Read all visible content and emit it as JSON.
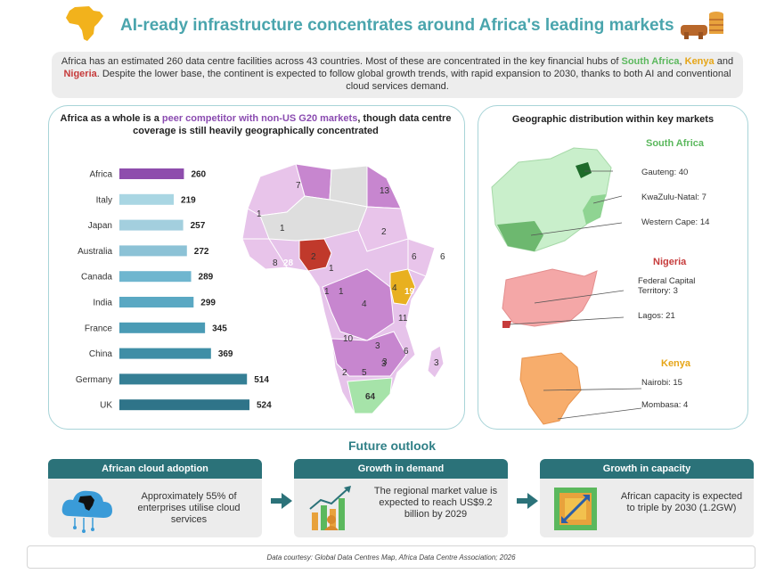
{
  "header": {
    "title": "AI-ready infrastructure concentrates around Africa's leading markets"
  },
  "intro": {
    "part1": "Africa has an estimated 260 data centre facilities across 43 countries. Most of these are concentrated in the key financial hubs of ",
    "south_africa": "South Africa",
    "comma": ", ",
    "kenya": "Kenya",
    "and": " and ",
    "nigeria": "Nigeria",
    "part2": ". Despite the lower base, the continent is expected to follow global growth trends, with rapid expansion to 2030, thanks to both AI and conventional cloud services demand."
  },
  "left_panel": {
    "heading_a": "Africa as a whole is a ",
    "heading_highlight": "peer competitor with non-US G20 markets",
    "heading_b": ", though data centre coverage is still heavily geographically concentrated"
  },
  "chart_data": {
    "type": "bar",
    "orientation": "horizontal",
    "categories": [
      "Africa",
      "Italy",
      "Japan",
      "Australia",
      "Canada",
      "India",
      "France",
      "China",
      "Germany",
      "UK"
    ],
    "values": [
      260,
      219,
      257,
      272,
      289,
      299,
      345,
      369,
      514,
      524
    ],
    "colors": [
      "#8e4dad",
      "#a9d6e3",
      "#a3cfde",
      "#8cc2d6",
      "#6fb6cf",
      "#5aa8c3",
      "#4a9bb5",
      "#3f8ea6",
      "#357f95",
      "#2f7489"
    ],
    "xlim": [
      0,
      524
    ],
    "grid": false
  },
  "africa_map": {
    "region_counts": [
      "7",
      "13",
      "1",
      "1",
      "2",
      "6",
      "8",
      "28",
      "2",
      "1",
      "6",
      "1",
      "1",
      "4",
      "19",
      "4",
      "11",
      "10",
      "3",
      "6",
      "3",
      "2",
      "5",
      "3",
      "3",
      "64"
    ],
    "colors": {
      "nigeria": "#c0392b",
      "kenya": "#e8b020",
      "south_africa": "#a6e3a9",
      "high": "#c786cf",
      "low": "#e8c4ea",
      "none": "#dedede"
    }
  },
  "right_panel": {
    "heading": "Geographic distribution within key markets",
    "south_africa": {
      "title": "South Africa",
      "labels": [
        "Gauteng: 40",
        "KwaZulu-Natal: 7",
        "Western Cape: 14"
      ]
    },
    "nigeria": {
      "title": "Nigeria",
      "label1_line1": "Federal Capital",
      "label1_line2": "Territory: 3",
      "label2": "Lagos: 21"
    },
    "kenya": {
      "title": "Kenya",
      "labels": [
        "Nairobi: 15",
        "Mombasa: 4"
      ]
    },
    "colors": {
      "south_africa": "#5bb85d",
      "nigeria": "#c63b3b",
      "kenya": "#e6a516"
    }
  },
  "future": {
    "heading": "Future outlook",
    "boxes": [
      {
        "title": "African cloud adoption",
        "text": "Approximately 55% of enterprises utilise cloud services"
      },
      {
        "title": "Growth in demand",
        "text": "The regional market value is expected to reach US$9.2 billion by 2029"
      },
      {
        "title": "Growth in capacity",
        "text": "African capacity is expected to triple by 2030 (1.2GW)"
      }
    ]
  },
  "footer": {
    "text": "Data courtesy: Global Data Centres Map, Africa Data Centre Association; 2026"
  }
}
